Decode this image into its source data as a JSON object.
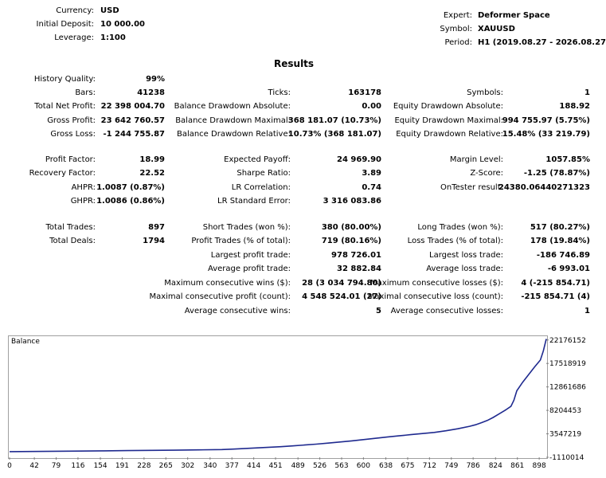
{
  "header": {
    "currency_label": "Currency:",
    "currency_value": "USD",
    "deposit_label": "Initial Deposit:",
    "deposit_value": "10 000.00",
    "leverage_label": "Leverage:",
    "leverage_value": "1:100",
    "expert_label": "Expert:",
    "expert_value": "Deformer Space",
    "symbol_label": "Symbol:",
    "symbol_value": "XAUUSD",
    "period_label": "Period:",
    "period_value": "H1 (2019.08.27 - 2026.08.27)"
  },
  "results_title": "Results",
  "stats": {
    "history_quality": {
      "label": "History Quality:",
      "value": "99%"
    },
    "bars": {
      "label": "Bars:",
      "value": "41238"
    },
    "ticks": {
      "label": "Ticks:",
      "value": "163178"
    },
    "symbols": {
      "label": "Symbols:",
      "value": "1"
    },
    "total_net_profit": {
      "label": "Total Net Profit:",
      "value": "22 398 004.70"
    },
    "balance_dd_abs": {
      "label": "Balance Drawdown Absolute:",
      "value": "0.00"
    },
    "equity_dd_abs": {
      "label": "Equity Drawdown Absolute:",
      "value": "188.92"
    },
    "gross_profit": {
      "label": "Gross Profit:",
      "value": "23 642 760.57"
    },
    "balance_dd_max": {
      "label": "Balance Drawdown Maximal:",
      "value": "368 181.07 (10.73%)"
    },
    "equity_dd_max": {
      "label": "Equity Drawdown Maximal:",
      "value": "994 755.97 (5.75%)"
    },
    "gross_loss": {
      "label": "Gross Loss:",
      "value": "-1 244 755.87"
    },
    "balance_dd_rel": {
      "label": "Balance Drawdown Relative:",
      "value": "10.73% (368 181.07)"
    },
    "equity_dd_rel": {
      "label": "Equity Drawdown Relative:",
      "value": "15.48% (33 219.79)"
    },
    "profit_factor": {
      "label": "Profit Factor:",
      "value": "18.99"
    },
    "expected_payoff": {
      "label": "Expected Payoff:",
      "value": "24 969.90"
    },
    "margin_level": {
      "label": "Margin Level:",
      "value": "1057.85%"
    },
    "recovery_factor": {
      "label": "Recovery Factor:",
      "value": "22.52"
    },
    "sharpe_ratio": {
      "label": "Sharpe Ratio:",
      "value": "3.89"
    },
    "z_score": {
      "label": "Z-Score:",
      "value": "-1.25 (78.87%)"
    },
    "ahpr": {
      "label": "AHPR:",
      "value": "1.0087 (0.87%)"
    },
    "lr_correlation": {
      "label": "LR Correlation:",
      "value": "0.74"
    },
    "ontester": {
      "label": "OnTester result:",
      "value": "24380.06440271323"
    },
    "ghpr": {
      "label": "GHPR:",
      "value": "1.0086 (0.86%)"
    },
    "lr_std_error": {
      "label": "LR Standard Error:",
      "value": "3 316 083.86"
    },
    "total_trades": {
      "label": "Total Trades:",
      "value": "897"
    },
    "short_trades": {
      "label": "Short Trades (won %):",
      "value": "380 (80.00%)"
    },
    "long_trades": {
      "label": "Long Trades (won %):",
      "value": "517 (80.27%)"
    },
    "total_deals": {
      "label": "Total Deals:",
      "value": "1794"
    },
    "profit_trades": {
      "label": "Profit Trades (% of total):",
      "value": "719 (80.16%)"
    },
    "loss_trades": {
      "label": "Loss Trades (% of total):",
      "value": "178 (19.84%)"
    },
    "largest_profit": {
      "label": "Largest profit trade:",
      "value": "978 726.01"
    },
    "largest_loss": {
      "label": "Largest loss trade:",
      "value": "-186 746.89"
    },
    "avg_profit": {
      "label": "Average profit trade:",
      "value": "32 882.84"
    },
    "avg_loss": {
      "label": "Average loss trade:",
      "value": "-6 993.01"
    },
    "max_consec_wins": {
      "label": "Maximum consecutive wins ($):",
      "value": "28 (3 034 794.80)"
    },
    "max_consec_losses": {
      "label": "Maximum consecutive losses ($):",
      "value": "4 (-215 854.71)"
    },
    "maximal_consec_profit": {
      "label": "Maximal consecutive profit (count):",
      "value": "4 548 524.01 (27)"
    },
    "maximal_consec_loss": {
      "label": "Maximal consecutive loss (count):",
      "value": "-215 854.71 (4)"
    },
    "avg_consec_wins": {
      "label": "Average consecutive wins:",
      "value": "5"
    },
    "avg_consec_losses": {
      "label": "Average consecutive losses:",
      "value": "1"
    }
  },
  "chart_data": {
    "type": "line",
    "title": "Balance",
    "xlabel": "",
    "ylabel": "",
    "x_ticks": [
      "0",
      "42",
      "79",
      "116",
      "154",
      "191",
      "228",
      "265",
      "302",
      "340",
      "377",
      "414",
      "451",
      "489",
      "526",
      "563",
      "600",
      "638",
      "675",
      "712",
      "749",
      "786",
      "824",
      "861",
      "898"
    ],
    "y_ticks": [
      "22176152",
      "17518919",
      "12861686",
      "8204453",
      "3547219",
      "-1110014"
    ],
    "xlim": [
      0,
      910
    ],
    "ylim": [
      -1110014,
      22930000
    ],
    "color": "#1f2a8f",
    "series": [
      {
        "x": [
          0,
          40,
          80,
          120,
          160,
          200,
          240,
          280,
          320,
          360,
          380,
          400,
          420,
          440,
          460,
          480,
          500,
          520,
          540,
          560,
          580,
          600,
          620,
          640,
          660,
          680,
          700,
          720,
          740,
          760,
          780,
          790,
          800,
          810,
          820,
          830,
          840,
          850,
          855,
          860,
          870,
          880,
          890,
          900,
          905,
          910
        ],
        "y": [
          10000,
          50000,
          90000,
          130000,
          170000,
          220000,
          260000,
          300000,
          360000,
          430000,
          520000,
          640000,
          760000,
          880000,
          1000000,
          1150000,
          1320000,
          1500000,
          1700000,
          1920000,
          2150000,
          2400000,
          2650000,
          2900000,
          3150000,
          3380000,
          3600000,
          3830000,
          4150000,
          4550000,
          5050000,
          5350000,
          5750000,
          6200000,
          6800000,
          7500000,
          8200000,
          9000000,
          10200000,
          12100000,
          13800000,
          15300000,
          16800000,
          18200000,
          20000000,
          22398000
        ]
      }
    ]
  }
}
